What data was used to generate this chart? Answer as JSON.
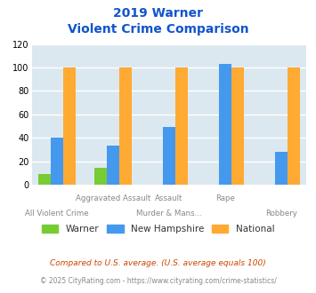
{
  "title_line1": "2019 Warner",
  "title_line2": "Violent Crime Comparison",
  "warner": [
    9,
    14,
    0,
    0,
    0
  ],
  "new_hampshire": [
    40,
    33,
    49,
    103,
    28
  ],
  "national": [
    100,
    100,
    100,
    100,
    100
  ],
  "warner_color": "#77cc33",
  "nh_color": "#4499ee",
  "national_color": "#ffaa33",
  "bg_color": "#dce8f0",
  "title_color": "#1155cc",
  "ylabel_vals": [
    0,
    20,
    40,
    60,
    80,
    100,
    120
  ],
  "ylim": [
    0,
    120
  ],
  "footnote1": "Compared to U.S. average. (U.S. average equals 100)",
  "footnote2": "© 2025 CityRating.com - https://www.cityrating.com/crime-statistics/",
  "footnote1_color": "#cc4400",
  "footnote2_color": "#888888",
  "legend_labels": [
    "Warner",
    "New Hampshire",
    "National"
  ],
  "bar_width": 0.22,
  "group_positions": [
    0,
    1,
    2,
    3,
    4
  ],
  "xtick_top": [
    "",
    "Aggravated Assault",
    "Assault",
    "Rape",
    ""
  ],
  "xtick_bot": [
    "All Violent Crime",
    "",
    "Murder & Mans...",
    "",
    "Robbery"
  ]
}
